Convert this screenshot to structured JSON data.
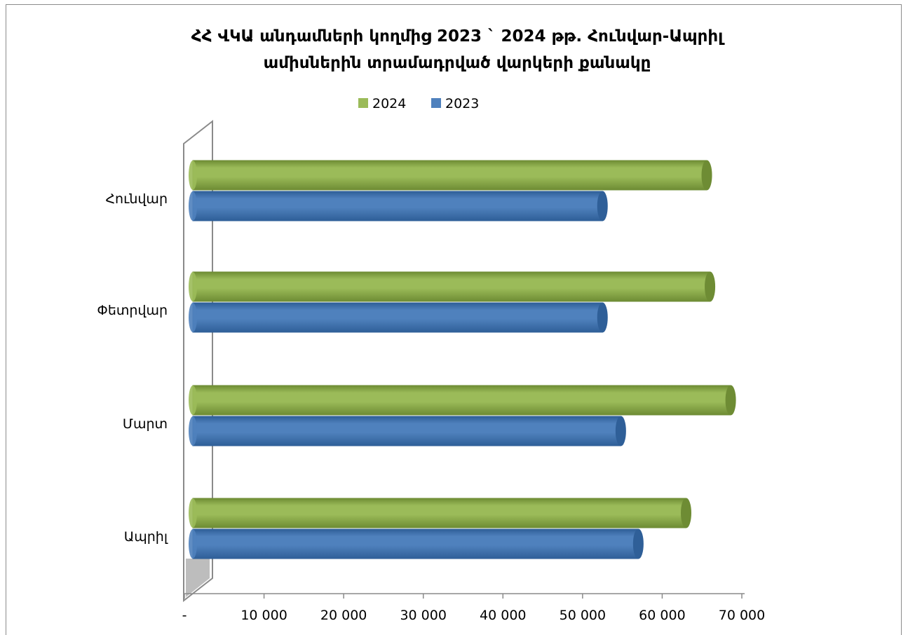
{
  "chart_data": {
    "type": "bar",
    "orientation": "horizontal",
    "title_lines": [
      "ՀՀ ՎԿԱ անդամների կողմից 2023 ` 2024 թթ. Հունվար-Ապրիլ",
      "ամիսներին տրամադրված վարկերի քանակը"
    ],
    "categories": [
      "Հունվար",
      "Փետրվար",
      "Մարտ",
      "Ապրիլ"
    ],
    "series": [
      {
        "name": "2024",
        "values": [
          65600,
          66000,
          68600,
          63000
        ],
        "color": "#9bbb59",
        "dark": "#6e8c34"
      },
      {
        "name": "2023",
        "values": [
          52500,
          52500,
          54800,
          57000
        ],
        "color": "#4f81bd",
        "dark": "#2f5f98"
      }
    ],
    "legend_order": [
      "2024",
      "2023"
    ],
    "legend_position": "top",
    "xlim": [
      0,
      70000
    ],
    "xticks": [
      0,
      10000,
      20000,
      30000,
      40000,
      50000,
      60000,
      70000
    ],
    "xtick_labels": [
      "-",
      "10 000",
      "20 000",
      "30 000",
      "40 000",
      "50 000",
      "60 000",
      "70 000"
    ],
    "grid": false,
    "style": "3d-cylinder"
  }
}
